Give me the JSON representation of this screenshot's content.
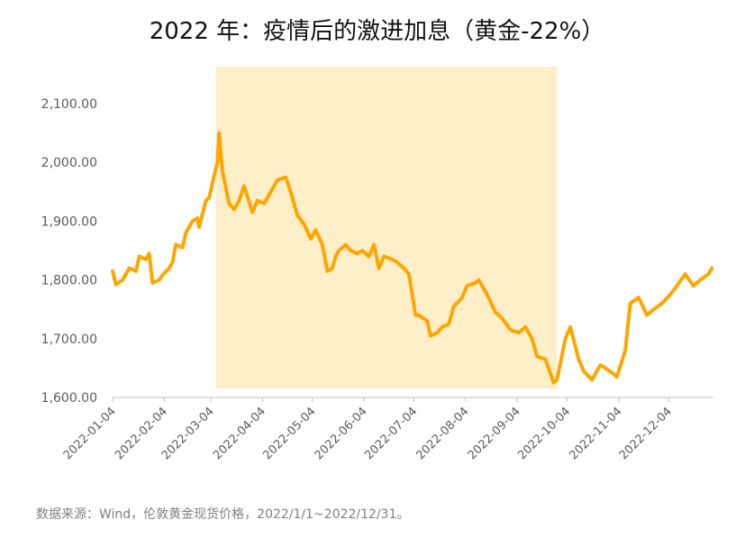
{
  "chart_data": {
    "type": "line",
    "title": "2022 年：疫情后的激进加息（黄金-22%）",
    "source_note": "数据来源：Wind，伦敦黄金现货价格，2022/1/1~2022/12/31。",
    "ylim": [
      1600,
      2100
    ],
    "y_ticks": [
      1600,
      1700,
      1800,
      1900,
      2000,
      2100
    ],
    "y_tick_labels": [
      "1,600.00",
      "1,700.00",
      "1,800.00",
      "1,900.00",
      "2,000.00",
      "2,100.00"
    ],
    "x_tick_labels": [
      "2022-01-04",
      "2022-02-04",
      "2022-03-04",
      "2022-04-04",
      "2022-05-04",
      "2022-06-04",
      "2022-07-04",
      "2022-08-04",
      "2022-09-04",
      "2022-10-04",
      "2022-11-04",
      "2022-12-04"
    ],
    "xlim": [
      "2022-01-04",
      "2022-12-31"
    ],
    "shaded_range": [
      "2022-03-07",
      "2022-09-28"
    ],
    "colors": {
      "line": "#FFA500",
      "shade": "#FFEFC9",
      "axis": "#BFBFBF"
    },
    "series": [
      {
        "x": [
          "2022-01-04",
          "2022-01-06",
          "2022-01-10",
          "2022-01-14",
          "2022-01-18",
          "2022-01-20",
          "2022-01-24",
          "2022-01-26",
          "2022-01-28",
          "2022-02-01",
          "2022-02-03",
          "2022-02-07",
          "2022-02-09",
          "2022-02-11",
          "2022-02-15",
          "2022-02-17",
          "2022-02-21",
          "2022-02-24",
          "2022-02-25",
          "2022-03-01",
          "2022-03-03",
          "2022-03-07",
          "2022-03-08",
          "2022-03-09",
          "2022-03-11",
          "2022-03-15",
          "2022-03-18",
          "2022-03-21",
          "2022-03-24",
          "2022-03-29",
          "2022-04-01",
          "2022-04-05",
          "2022-04-08",
          "2022-04-13",
          "2022-04-18",
          "2022-04-21",
          "2022-04-25",
          "2022-04-29",
          "2022-05-03",
          "2022-05-06",
          "2022-05-10",
          "2022-05-13",
          "2022-05-16",
          "2022-05-18",
          "2022-05-20",
          "2022-05-24",
          "2022-05-27",
          "2022-05-31",
          "2022-06-03",
          "2022-06-07",
          "2022-06-10",
          "2022-06-13",
          "2022-06-16",
          "2022-06-21",
          "2022-06-24",
          "2022-06-28",
          "2022-07-01",
          "2022-07-05",
          "2022-07-07",
          "2022-07-12",
          "2022-07-14",
          "2022-07-18",
          "2022-07-21",
          "2022-07-25",
          "2022-07-28",
          "2022-08-02",
          "2022-08-05",
          "2022-08-10",
          "2022-08-12",
          "2022-08-17",
          "2022-08-22",
          "2022-08-26",
          "2022-08-31",
          "2022-09-05",
          "2022-09-09",
          "2022-09-13",
          "2022-09-16",
          "2022-09-21",
          "2022-09-26",
          "2022-09-28",
          "2022-10-03",
          "2022-10-06",
          "2022-10-11",
          "2022-10-14",
          "2022-10-19",
          "2022-10-24",
          "2022-10-27",
          "2022-11-01",
          "2022-11-03",
          "2022-11-08",
          "2022-11-11",
          "2022-11-16",
          "2022-11-21",
          "2022-11-25",
          "2022-11-30",
          "2022-12-05",
          "2022-12-09",
          "2022-12-14",
          "2022-12-19",
          "2022-12-23",
          "2022-12-28",
          "2022-12-30"
        ],
        "y": [
          1815,
          1792,
          1800,
          1820,
          1815,
          1840,
          1835,
          1845,
          1795,
          1800,
          1808,
          1820,
          1830,
          1860,
          1855,
          1880,
          1900,
          1905,
          1890,
          1935,
          1940,
          1990,
          2000,
          2050,
          1985,
          1930,
          1920,
          1935,
          1960,
          1915,
          1935,
          1930,
          1945,
          1970,
          1975,
          1950,
          1910,
          1895,
          1870,
          1885,
          1860,
          1815,
          1820,
          1840,
          1850,
          1860,
          1850,
          1845,
          1850,
          1840,
          1860,
          1820,
          1840,
          1835,
          1830,
          1820,
          1810,
          1740,
          1740,
          1730,
          1705,
          1710,
          1720,
          1725,
          1755,
          1770,
          1790,
          1795,
          1800,
          1775,
          1745,
          1735,
          1715,
          1710,
          1720,
          1700,
          1670,
          1665,
          1625,
          1630,
          1700,
          1720,
          1665,
          1645,
          1630,
          1655,
          1650,
          1640,
          1635,
          1680,
          1760,
          1770,
          1740,
          1750,
          1760,
          1775,
          1790,
          1810,
          1790,
          1800,
          1810,
          1820
        ]
      }
    ]
  }
}
